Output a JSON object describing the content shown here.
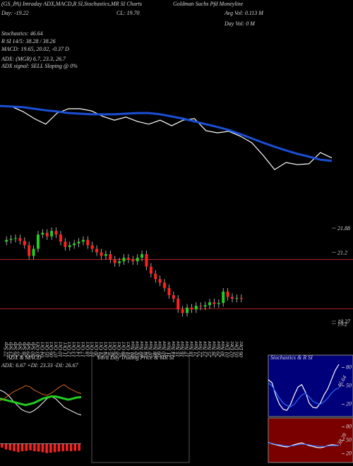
{
  "chart_data": [
    {
      "type": "line",
      "title": "Goldman Sachs Pfd Moneyline",
      "annotations": [
        "(GS_PA) Intraday ADX,MACD,R SI,Stochastics,MR SI Charts",
        "Day: -19.22",
        "CL: 19.70",
        "Avg Vol: 0.113 M",
        "Day Vol: 0  M",
        "Stochastics: 46.64",
        "R SI 14/5: 38.28 / 38.26",
        "MACD: 19.65, 20.02, -0.37 D",
        "ADX: (MGR) 6.7, 23.3, 26.7",
        "ADX signal: SELL Sloping @ 0%"
      ],
      "ylim": [
        19.5,
        21.9
      ],
      "series": [
        {
          "color": "#ffffff",
          "values": [
            21.67,
            21.65,
            21.49,
            21.26,
            21.08,
            21.44,
            21.58,
            21.58,
            21.51,
            21.33,
            21.21,
            21.31,
            21.17,
            21.08,
            21.21,
            21.03,
            21.21,
            21.26,
            20.87,
            20.8,
            20.85,
            20.69,
            20.48,
            20.07,
            19.61,
            19.84,
            19.77,
            19.8,
            20.16,
            19.99
          ]
        },
        {
          "color": "#1a4fd6",
          "values": [
            21.67,
            21.65,
            21.63,
            21.58,
            21.53,
            21.49,
            21.44,
            21.42,
            21.4,
            21.4,
            21.4,
            21.42,
            21.44,
            21.44,
            21.4,
            21.33,
            21.26,
            21.17,
            21.08,
            20.99,
            20.89,
            20.76,
            20.62,
            20.48,
            20.35,
            20.23,
            20.12,
            20.03,
            19.93,
            19.89
          ]
        }
      ]
    },
    {
      "type": "candlestick",
      "x": [
        "22 Sep",
        "23 Sep",
        "26 Sep",
        "27 Sep",
        "28 Sep",
        "29 Sep",
        "30 Sep",
        "03 Oct",
        "04 Oct",
        "05 Oct",
        "06 Oct",
        "07 Oct",
        "10 Oct",
        "11 Oct",
        "12 Oct",
        "13 Oct",
        "14 Oct",
        "17 Oct",
        "18 Oct",
        "19 Oct",
        "20 Oct",
        "21 Oct",
        "24 Oct",
        "25 Oct",
        "26 Oct",
        "27 Oct",
        "28 Oct",
        "31 Oct",
        "01 Nov",
        "02 Nov",
        "03 Nov",
        "04 Nov",
        "07 Nov",
        "08 Nov",
        "09 Nov",
        "10 Nov",
        "11 Nov",
        "14 Nov",
        "15 Nov",
        "16 Nov",
        "17 Nov",
        "18 Nov",
        "21 Nov",
        "22 Nov",
        "23 Nov",
        "25 Nov",
        "28 Nov",
        "29 Nov",
        "30 Nov",
        "01 Dec",
        "02 Dec",
        "05 Dec",
        "06 Dec"
      ],
      "open": [
        21.5,
        21.55,
        21.58,
        21.6,
        21.52,
        21.4,
        21.1,
        21.3,
        21.7,
        21.75,
        21.65,
        21.8,
        21.7,
        21.5,
        21.35,
        21.4,
        21.45,
        21.5,
        21.55,
        21.4,
        21.3,
        21.2,
        21.1,
        21.15,
        21.0,
        20.9,
        20.95,
        21.05,
        21.0,
        20.95,
        21.05,
        21.15,
        20.8,
        20.6,
        20.45,
        20.35,
        20.2,
        20.0,
        19.9,
        19.6,
        19.5,
        19.65,
        19.6,
        19.7,
        19.68,
        19.72,
        19.8,
        19.75,
        19.78,
        20.1,
        19.95,
        19.9,
        19.92
      ],
      "high": [
        21.65,
        21.68,
        21.7,
        21.7,
        21.62,
        21.5,
        21.4,
        21.8,
        21.85,
        21.85,
        21.9,
        21.9,
        21.8,
        21.6,
        21.5,
        21.55,
        21.6,
        21.65,
        21.65,
        21.5,
        21.4,
        21.3,
        21.25,
        21.25,
        21.1,
        21.05,
        21.15,
        21.15,
        21.1,
        21.15,
        21.25,
        21.25,
        20.9,
        20.7,
        20.55,
        20.45,
        20.3,
        20.1,
        20.0,
        19.7,
        19.75,
        19.75,
        19.8,
        19.8,
        19.82,
        19.9,
        19.9,
        19.88,
        20.2,
        20.2,
        20.05,
        20.02,
        20.02
      ],
      "low": [
        21.4,
        21.45,
        21.48,
        21.42,
        21.3,
        21.0,
        21.0,
        21.2,
        21.6,
        21.55,
        21.55,
        21.6,
        21.4,
        21.25,
        21.25,
        21.3,
        21.35,
        21.4,
        21.3,
        21.2,
        21.1,
        21.0,
        21.0,
        20.9,
        20.8,
        20.8,
        20.85,
        20.9,
        20.85,
        20.85,
        20.95,
        20.7,
        20.5,
        20.35,
        20.25,
        20.1,
        19.9,
        19.8,
        19.5,
        19.4,
        19.4,
        19.5,
        19.5,
        19.58,
        19.58,
        19.62,
        19.65,
        19.65,
        19.68,
        19.85,
        19.8,
        19.8,
        19.8
      ],
      "close": [
        21.55,
        21.58,
        21.6,
        21.52,
        21.4,
        21.1,
        21.3,
        21.7,
        21.75,
        21.65,
        21.8,
        21.7,
        21.5,
        21.35,
        21.4,
        21.45,
        21.5,
        21.55,
        21.4,
        21.3,
        21.2,
        21.1,
        21.15,
        21.0,
        20.9,
        20.95,
        21.05,
        21.0,
        20.95,
        21.05,
        21.15,
        20.8,
        20.6,
        20.45,
        20.35,
        20.2,
        20.0,
        19.9,
        19.6,
        19.5,
        19.65,
        19.6,
        19.7,
        19.68,
        19.72,
        19.8,
        19.75,
        19.78,
        20.1,
        19.95,
        19.9,
        19.92,
        19.9
      ],
      "up_color": "#22cc22",
      "down_color": "#ff2020",
      "ylim": [
        19.07,
        22.04
      ],
      "yticks": [
        21.88,
        21.2,
        19.27,
        19.2
      ],
      "hlines": [
        21.0,
        19.62
      ],
      "hline_color": "#b22222"
    },
    {
      "type": "line",
      "title": "ADX & MACD",
      "subtitle": "ADX: 6.67 +DI: 23.33 -DI: 26.67",
      "ylim": [
        0,
        50
      ],
      "series": [
        {
          "color": "#ffffff",
          "values": [
            30,
            28,
            25,
            20,
            16,
            12,
            10,
            9,
            11,
            14,
            18,
            22,
            24,
            22,
            18,
            14,
            12,
            10,
            8,
            6.67
          ]
        },
        {
          "color": "#22cc22",
          "values": [
            22,
            21,
            20,
            19,
            18,
            17,
            16,
            17,
            18,
            20,
            22,
            23,
            24,
            24,
            23,
            22,
            21,
            22,
            23,
            23.33
          ]
        },
        {
          "color": "#d2691e",
          "values": [
            20,
            22,
            25,
            28,
            30,
            32,
            34,
            33,
            30,
            28,
            26,
            25,
            27,
            30,
            33,
            35,
            32,
            30,
            28,
            26.67
          ]
        }
      ]
    },
    {
      "type": "bar",
      "color": "#ff2020",
      "ylim": [
        -1,
        1
      ],
      "values": [
        -0.2,
        -0.3,
        -0.35,
        -0.4,
        -0.45,
        -0.4,
        -0.38,
        -0.35,
        -0.4,
        -0.42,
        -0.45,
        -0.5,
        -0.48,
        -0.45,
        -0.42,
        -0.4,
        -0.38,
        -0.4,
        -0.38,
        -0.37
      ]
    },
    {
      "type": "line",
      "title": "Intra Day Trading Price & MR SI",
      "series": []
    },
    {
      "type": "line",
      "title": "Stochastics & R SI",
      "background": "#00007a",
      "ylim": [
        0,
        100
      ],
      "yticks": [
        80,
        50,
        20
      ],
      "label_series": 1,
      "series": [
        {
          "color": "#ffffff",
          "values": [
            60,
            55,
            35,
            20,
            12,
            10,
            20,
            35,
            48,
            52,
            40,
            22,
            15,
            14,
            22,
            35,
            45,
            60,
            75,
            85
          ]
        },
        {
          "color": "#2a6cff",
          "values": [
            55,
            50,
            40,
            30,
            22,
            18,
            16,
            20,
            28,
            35,
            38,
            32,
            25,
            22,
            20,
            24,
            30,
            38,
            44,
            46.64
          ]
        }
      ]
    },
    {
      "type": "line",
      "background": "#7a0000",
      "ylim": [
        0,
        100
      ],
      "yticks": [
        80,
        50,
        20
      ],
      "label_series": 0,
      "series": [
        {
          "color": "#ffffff",
          "values": [
            45,
            42,
            40,
            38,
            36,
            35,
            37,
            40,
            42,
            44,
            41,
            38,
            36,
            34,
            33,
            35,
            38,
            40,
            39,
            38.28
          ]
        },
        {
          "color": "#2a6cff",
          "values": [
            44,
            43,
            41,
            40,
            38,
            37,
            37,
            38,
            40,
            41,
            41,
            40,
            38,
            37,
            36,
            36,
            37,
            38,
            38,
            38.26
          ]
        }
      ]
    }
  ]
}
